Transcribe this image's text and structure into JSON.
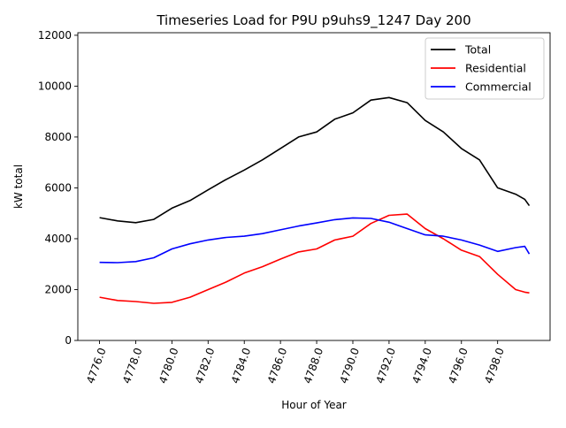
{
  "chart_data": {
    "type": "line",
    "title": "Timeseries Load for P9U p9uhs9_1247  Day 200",
    "xlabel": "Hour of Year",
    "ylabel": "kW total",
    "xlim": [
      4774.8,
      4800.9
    ],
    "ylim": [
      0,
      12100
    ],
    "xticks": [
      4776,
      4778,
      4780,
      4782,
      4784,
      4786,
      4788,
      4790,
      4792,
      4794,
      4796,
      4798
    ],
    "xtick_labels": [
      "4776.0",
      "4778.0",
      "4780.0",
      "4782.0",
      "4784.0",
      "4786.0",
      "4788.0",
      "4790.0",
      "4792.0",
      "4794.0",
      "4796.0",
      "4798.0"
    ],
    "yticks": [
      0,
      2000,
      4000,
      6000,
      8000,
      10000,
      12000
    ],
    "ytick_labels": [
      "0",
      "2000",
      "4000",
      "6000",
      "8000",
      "10000",
      "12000"
    ],
    "grid": false,
    "legend_position": "top-right",
    "x": [
      4776,
      4777,
      4778,
      4779,
      4780,
      4781,
      4782,
      4783,
      4784,
      4785,
      4786,
      4787,
      4788,
      4789,
      4790,
      4791,
      4792,
      4793,
      4794,
      4795,
      4796,
      4797,
      4798,
      4799,
      4799.5,
      4799.75
    ],
    "series": [
      {
        "name": "Total",
        "color": "#000000",
        "values": [
          4830,
          4700,
          4630,
          4760,
          5200,
          5500,
          5920,
          6330,
          6700,
          7100,
          7550,
          8000,
          8200,
          8700,
          8950,
          9450,
          9550,
          9350,
          8650,
          8200,
          7550,
          7100,
          6000,
          5750,
          5550,
          5300
        ]
      },
      {
        "name": "Residential",
        "color": "#ff0000",
        "values": [
          1700,
          1570,
          1530,
          1460,
          1500,
          1700,
          2000,
          2300,
          2650,
          2900,
          3200,
          3480,
          3600,
          3950,
          4100,
          4600,
          4920,
          4970,
          4400,
          4000,
          3550,
          3300,
          2600,
          2000,
          1900,
          1870
        ]
      },
      {
        "name": "Commercial",
        "color": "#0000ff",
        "values": [
          3070,
          3060,
          3100,
          3250,
          3600,
          3800,
          3950,
          4050,
          4100,
          4200,
          4350,
          4500,
          4620,
          4750,
          4820,
          4800,
          4650,
          4400,
          4150,
          4100,
          3950,
          3750,
          3500,
          3650,
          3700,
          3400
        ]
      }
    ]
  }
}
